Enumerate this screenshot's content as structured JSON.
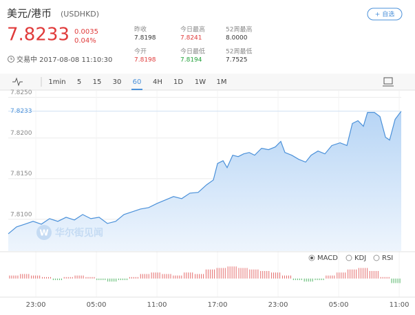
{
  "header": {
    "pair": "美元/港币",
    "code": "(USDHKD)",
    "price": "7.8233",
    "change": "0.0035",
    "change_pct": "0.04%",
    "status_time": "交易中 2017-08-08 11:10:30",
    "add_button": "+ 自选"
  },
  "stats": [
    {
      "label": "昨收",
      "value": "7.8198",
      "color": "#333333"
    },
    {
      "label": "今日最高",
      "value": "7.8241",
      "color": "#e03b3b"
    },
    {
      "label": "52周最高",
      "value": "8.0000",
      "color": "#333333"
    },
    {
      "label": "今开",
      "value": "7.8198",
      "color": "#e03b3b"
    },
    {
      "label": "今日最低",
      "value": "7.8194",
      "color": "#22a03a"
    },
    {
      "label": "52周最低",
      "value": "7.7525",
      "color": "#333333"
    }
  ],
  "tabs": [
    "1min",
    "5",
    "15",
    "30",
    "60",
    "4H",
    "1D",
    "1W",
    "1M"
  ],
  "active_tab": 4,
  "watermark": "华尔街见闻",
  "indicators": [
    "MACD",
    "KDJ",
    "RSI"
  ],
  "active_indicator": 0,
  "chart": {
    "type": "line",
    "color": "#4a90d9",
    "x": [
      -2.73,
      -1.91,
      -1.09,
      -0.27,
      0.55,
      1.36,
      2.18,
      3.0,
      3.82,
      4.64,
      5.45,
      6.27,
      7.09,
      7.91,
      8.73,
      9.55,
      10.36,
      11.18,
      12.0,
      12.82,
      13.64,
      14.45,
      15.27,
      16.09,
      16.91,
      17.59,
      18.0,
      18.55,
      18.95,
      19.5,
      20.05,
      20.59,
      21.14,
      21.68,
      22.36,
      23.05,
      23.73,
      24.27,
      24.68,
      25.36,
      26.05,
      26.73,
      27.27,
      27.95,
      28.64,
      29.32,
      30.14,
      30.82,
      31.36,
      31.91,
      32.45,
      32.86,
      33.55,
      34.09,
      34.64,
      35.05,
      35.59,
      36.2
    ],
    "values": [
      7.80822,
      7.80907,
      7.80941,
      7.80975,
      7.80941,
      7.81008,
      7.80975,
      7.81025,
      7.80992,
      7.81059,
      7.81008,
      7.81025,
      7.80949,
      7.80975,
      7.81059,
      7.81093,
      7.81127,
      7.81144,
      7.81195,
      7.81237,
      7.8128,
      7.81254,
      7.81322,
      7.81331,
      7.81424,
      7.81483,
      7.81686,
      7.8172,
      7.81636,
      7.81788,
      7.81771,
      7.81805,
      7.81822,
      7.81788,
      7.81873,
      7.81856,
      7.8189,
      7.81958,
      7.81822,
      7.81788,
      7.81737,
      7.81703,
      7.81788,
      7.81839,
      7.81805,
      7.81907,
      7.81941,
      7.81907,
      7.82178,
      7.82212,
      7.82144,
      7.82314,
      7.82314,
      7.82263,
      7.82009,
      7.81975,
      7.82229,
      7.8233
    ],
    "xlim": [
      -2.73,
      36.2
    ],
    "xticks": [
      {
        "value": 0,
        "label": "23:00"
      },
      {
        "value": 6,
        "label": "05:00"
      },
      {
        "value": 12,
        "label": "11:00"
      },
      {
        "value": 18,
        "label": "17:00"
      },
      {
        "value": 24,
        "label": "23:00"
      },
      {
        "value": 30,
        "label": "05:00"
      },
      {
        "value": 36,
        "label": "11:00"
      }
    ],
    "ylim": [
      7.8061,
      7.8258
    ],
    "yticks": [
      {
        "value": 7.81,
        "label": "7.8100"
      },
      {
        "value": 7.815,
        "label": "7.8150"
      },
      {
        "value": 7.82,
        "label": "7.8200"
      },
      {
        "value": 7.825,
        "label": "7.8250"
      }
    ],
    "last_label": {
      "value": 7.8233,
      "label": "7.8233"
    },
    "macd": {
      "type": "bar",
      "ylim": [
        -1,
        1
      ],
      "values": [
        0.2,
        0.3,
        0.2,
        0.1,
        -0.1,
        0.1,
        0.2,
        0.1,
        -0.1,
        -0.2,
        -0.1,
        0.1,
        0.3,
        0.4,
        0.3,
        0.2,
        0.4,
        0.3,
        0.6,
        0.7,
        0.8,
        0.7,
        0.6,
        0.5,
        0.4,
        0.2,
        -0.1,
        -0.2,
        -0.1,
        0.2,
        0.4,
        0.6,
        0.7,
        0.5,
        0.1,
        -0.3
      ]
    }
  }
}
